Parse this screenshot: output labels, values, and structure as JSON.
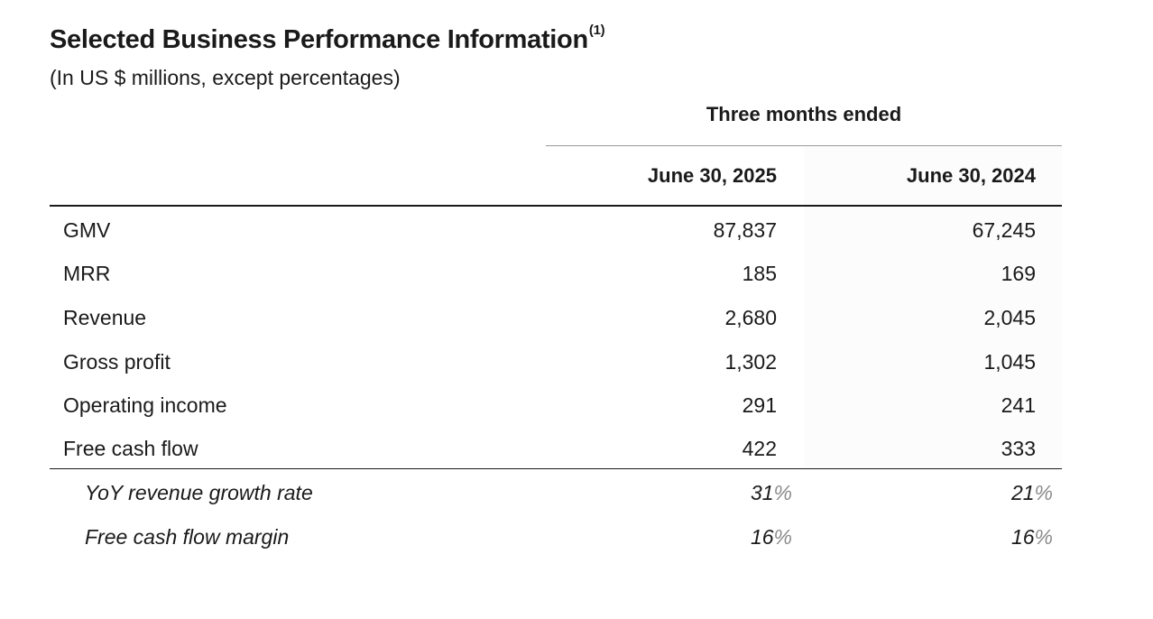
{
  "header": {
    "title": "Selected Business Performance Information",
    "title_footnote": "(1)",
    "subtitle": "(In US $ millions, except percentages)"
  },
  "table": {
    "period_header": "Three months ended",
    "columns": [
      "June 30, 2025",
      "June 30, 2024"
    ],
    "rows": [
      {
        "label": "GMV",
        "values": [
          "87,837",
          "67,245"
        ]
      },
      {
        "label": "MRR",
        "values": [
          "185",
          "169"
        ]
      },
      {
        "label": "Revenue",
        "values": [
          "2,680",
          "2,045"
        ]
      },
      {
        "label": "Gross profit",
        "values": [
          "1,302",
          "1,045"
        ]
      },
      {
        "label": "Operating income",
        "values": [
          "291",
          "241"
        ]
      },
      {
        "label": "Free cash flow",
        "values": [
          "422",
          "333"
        ]
      }
    ],
    "ratio_rows": [
      {
        "label": "YoY revenue growth rate",
        "values": [
          "31",
          "21"
        ],
        "unit": "%"
      },
      {
        "label": "Free cash flow margin",
        "values": [
          "16",
          "16"
        ],
        "unit": "%"
      }
    ]
  }
}
